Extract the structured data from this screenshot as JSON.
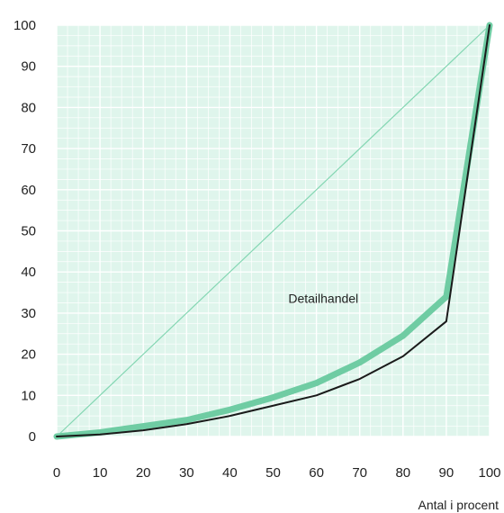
{
  "chart_data": {
    "type": "line",
    "title": "",
    "xlabel": "Antal i procent",
    "ylabel": "",
    "xlim": [
      0,
      100
    ],
    "ylim": [
      0,
      100
    ],
    "grid": true,
    "x_ticks": [
      "0",
      "10",
      "20",
      "30",
      "40",
      "50",
      "60",
      "70",
      "80",
      "90",
      "100"
    ],
    "y_ticks": [
      "0",
      "10",
      "20",
      "30",
      "40",
      "50",
      "60",
      "70",
      "80",
      "90",
      "100"
    ],
    "annotation": "Detailhandel",
    "series": [
      {
        "color": "#6fcca3",
        "style": "thick",
        "x": [
          0,
          10,
          20,
          30,
          40,
          50,
          60,
          70,
          80,
          90,
          100
        ],
        "y": [
          0,
          1,
          2.5,
          4,
          6.5,
          9.5,
          13,
          18,
          24.5,
          34,
          100
        ]
      },
      {
        "color": "#1a1a1a",
        "style": "thin",
        "x": [
          0,
          10,
          20,
          30,
          40,
          50,
          60,
          70,
          80,
          90,
          100
        ],
        "y": [
          0,
          0.5,
          1.5,
          3,
          5,
          7.5,
          10,
          14,
          19.5,
          28,
          100
        ]
      },
      {
        "color": "#79d3ac",
        "style": "diagonal",
        "x": [
          0,
          100
        ],
        "y": [
          0,
          100
        ]
      }
    ],
    "colors": {
      "plot_background": "#dff5ec",
      "grid": "#ffffff"
    }
  }
}
